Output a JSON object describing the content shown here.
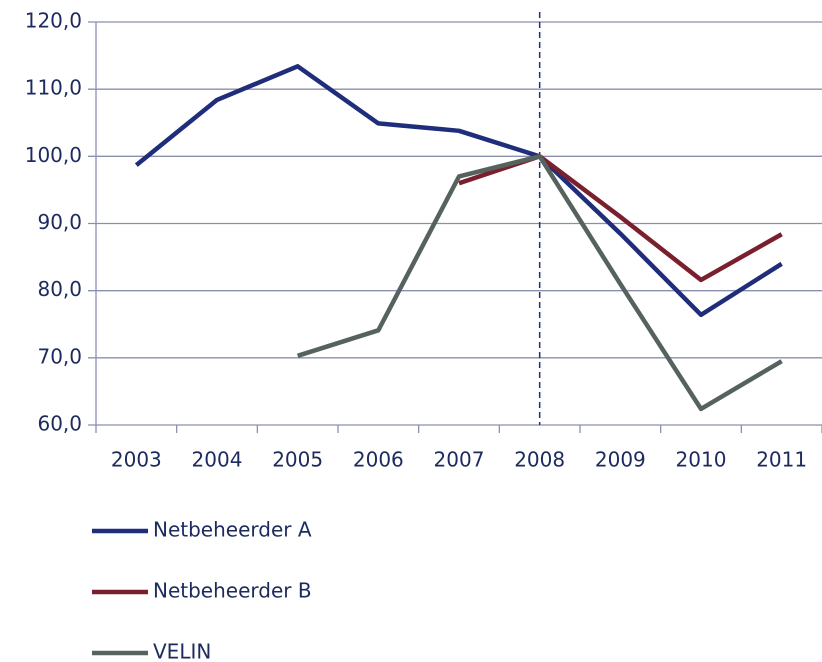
{
  "chart_data": {
    "type": "line",
    "categories": [
      "2003",
      "2004",
      "2005",
      "2006",
      "2007",
      "2008",
      "2009",
      "2010",
      "2011"
    ],
    "series": [
      {
        "name": "Netbeheerder A",
        "color": "#1f2d7a",
        "values": [
          98.7,
          108.4,
          113.4,
          104.9,
          103.8,
          100.0,
          88.5,
          76.4,
          84.0
        ]
      },
      {
        "name": "Netbeheerder B",
        "color": "#7a1f2e",
        "values": [
          null,
          null,
          null,
          null,
          96.0,
          100.0,
          91.0,
          81.6,
          88.4
        ]
      },
      {
        "name": "VELIN",
        "color": "#56625d",
        "values": [
          null,
          null,
          70.3,
          74.1,
          97.0,
          100.0,
          81.0,
          62.4,
          69.5
        ]
      }
    ],
    "ylim": [
      60,
      120
    ],
    "yticks": [
      {
        "value": 60,
        "label": "60,0"
      },
      {
        "value": 70,
        "label": "70,0"
      },
      {
        "value": 80,
        "label": "80,0"
      },
      {
        "value": 90,
        "label": "90,0"
      },
      {
        "value": 100,
        "label": "100,0"
      },
      {
        "value": 110,
        "label": "110,0"
      },
      {
        "value": 120,
        "label": "120,0"
      }
    ],
    "grid": true
  }
}
